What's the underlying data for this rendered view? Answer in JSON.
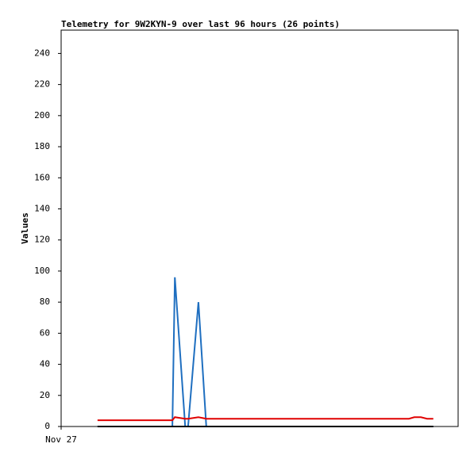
{
  "chart_data": {
    "type": "line",
    "title": "Telemetry for 9W2KYN-9 over last 96 hours (26 points)",
    "y_label": "Values",
    "x": [
      8.8,
      12.1,
      15.4,
      18.6,
      21.9,
      25.0,
      26.9,
      27.5,
      30.0,
      30.7,
      33.2,
      35.1,
      40.9,
      46.7,
      52.4,
      58.2,
      63.9,
      69.7,
      75.5,
      79.3,
      82.2,
      84.1,
      85.4,
      87.0,
      88.5,
      90.0
    ],
    "xlim": [
      0,
      96
    ],
    "xticks": [
      {
        "value": 0,
        "label": "Nov 27"
      }
    ],
    "ylim": [
      0,
      255
    ],
    "yticks": [
      0,
      20,
      40,
      60,
      80,
      100,
      120,
      140,
      160,
      180,
      200,
      220,
      240
    ],
    "series": [
      {
        "color": "#1f6fc0",
        "values": [
          0,
          0,
          0,
          0,
          0,
          0,
          0,
          96,
          0,
          0,
          80,
          0,
          0,
          0,
          0,
          0,
          0,
          0,
          0,
          0,
          0,
          0,
          0,
          0,
          0,
          0
        ]
      },
      {
        "color": "#e00000",
        "values": [
          4,
          4,
          4,
          4,
          4,
          4,
          4,
          6,
          5,
          5,
          6,
          5,
          5,
          5,
          5,
          5,
          5,
          5,
          5,
          5,
          5,
          5,
          6,
          6,
          5,
          5
        ]
      },
      {
        "color": "#000000",
        "values": [
          0,
          0,
          0,
          0,
          0,
          0,
          0,
          0,
          0,
          0,
          0,
          0,
          0,
          0,
          0,
          0,
          0,
          0,
          0,
          0,
          0,
          0,
          0,
          0,
          0,
          0
        ]
      }
    ]
  }
}
